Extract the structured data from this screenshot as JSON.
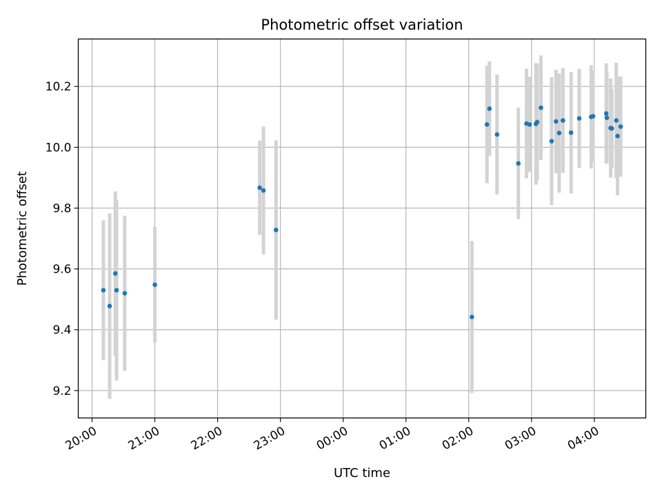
{
  "chart_data": {
    "type": "scatter",
    "title": "Photometric offset variation",
    "xlabel": "UTC time",
    "ylabel": "Photometric offset",
    "x_unit": "hours",
    "xlim": [
      19.78,
      28.82
    ],
    "ylim": [
      9.11,
      10.356
    ],
    "x_ticks": [
      {
        "value": 20,
        "label": "20:00"
      },
      {
        "value": 21,
        "label": "21:00"
      },
      {
        "value": 22,
        "label": "22:00"
      },
      {
        "value": 23,
        "label": "23:00"
      },
      {
        "value": 24,
        "label": "00:00"
      },
      {
        "value": 25,
        "label": "01:00"
      },
      {
        "value": 26,
        "label": "02:00"
      },
      {
        "value": 27,
        "label": "03:00"
      },
      {
        "value": 28,
        "label": "04:00"
      }
    ],
    "y_ticks": [
      {
        "value": 9.2,
        "label": "9.2"
      },
      {
        "value": 9.4,
        "label": "9.4"
      },
      {
        "value": 9.6,
        "label": "9.6"
      },
      {
        "value": 9.8,
        "label": "9.8"
      },
      {
        "value": 10.0,
        "label": "10.0"
      },
      {
        "value": 10.2,
        "label": "10.2"
      }
    ],
    "grid": true,
    "colors": {
      "point": "#1f77b4",
      "errorbar": "#d3d3d3",
      "grid": "#b0b0b0"
    },
    "points": [
      {
        "x": 20.18,
        "y": 9.53,
        "err": 0.23
      },
      {
        "x": 20.28,
        "y": 9.478,
        "err": 0.305
      },
      {
        "x": 20.37,
        "y": 9.585,
        "err": 0.27
      },
      {
        "x": 20.39,
        "y": 9.53,
        "err": 0.297
      },
      {
        "x": 20.52,
        "y": 9.52,
        "err": 0.255
      },
      {
        "x": 21.0,
        "y": 9.548,
        "err": 0.19
      },
      {
        "x": 22.67,
        "y": 9.867,
        "err": 0.155
      },
      {
        "x": 22.73,
        "y": 9.858,
        "err": 0.21
      },
      {
        "x": 22.93,
        "y": 9.728,
        "err": 0.295
      },
      {
        "x": 26.05,
        "y": 9.442,
        "err": 0.25
      },
      {
        "x": 26.29,
        "y": 10.075,
        "err": 0.193
      },
      {
        "x": 26.33,
        "y": 10.127,
        "err": 0.155
      },
      {
        "x": 26.45,
        "y": 10.042,
        "err": 0.197
      },
      {
        "x": 26.79,
        "y": 9.947,
        "err": 0.183
      },
      {
        "x": 26.92,
        "y": 10.078,
        "err": 0.18
      },
      {
        "x": 26.97,
        "y": 10.075,
        "err": 0.157
      },
      {
        "x": 27.07,
        "y": 10.077,
        "err": 0.2
      },
      {
        "x": 27.09,
        "y": 10.083,
        "err": 0.192
      },
      {
        "x": 27.15,
        "y": 10.13,
        "err": 0.172
      },
      {
        "x": 27.32,
        "y": 10.02,
        "err": 0.21
      },
      {
        "x": 27.39,
        "y": 10.085,
        "err": 0.17
      },
      {
        "x": 27.44,
        "y": 10.047,
        "err": 0.196
      },
      {
        "x": 27.5,
        "y": 10.088,
        "err": 0.172
      },
      {
        "x": 27.63,
        "y": 10.048,
        "err": 0.2
      },
      {
        "x": 27.76,
        "y": 10.095,
        "err": 0.163
      },
      {
        "x": 27.95,
        "y": 10.1,
        "err": 0.17
      },
      {
        "x": 27.98,
        "y": 10.102,
        "err": 0.15
      },
      {
        "x": 28.19,
        "y": 10.111,
        "err": 0.165
      },
      {
        "x": 28.2,
        "y": 10.097,
        "err": 0.15
      },
      {
        "x": 28.26,
        "y": 10.063,
        "err": 0.163
      },
      {
        "x": 28.28,
        "y": 10.062,
        "err": 0.13
      },
      {
        "x": 28.35,
        "y": 10.088,
        "err": 0.19
      },
      {
        "x": 28.37,
        "y": 10.037,
        "err": 0.195
      },
      {
        "x": 28.42,
        "y": 10.068,
        "err": 0.165
      }
    ]
  }
}
